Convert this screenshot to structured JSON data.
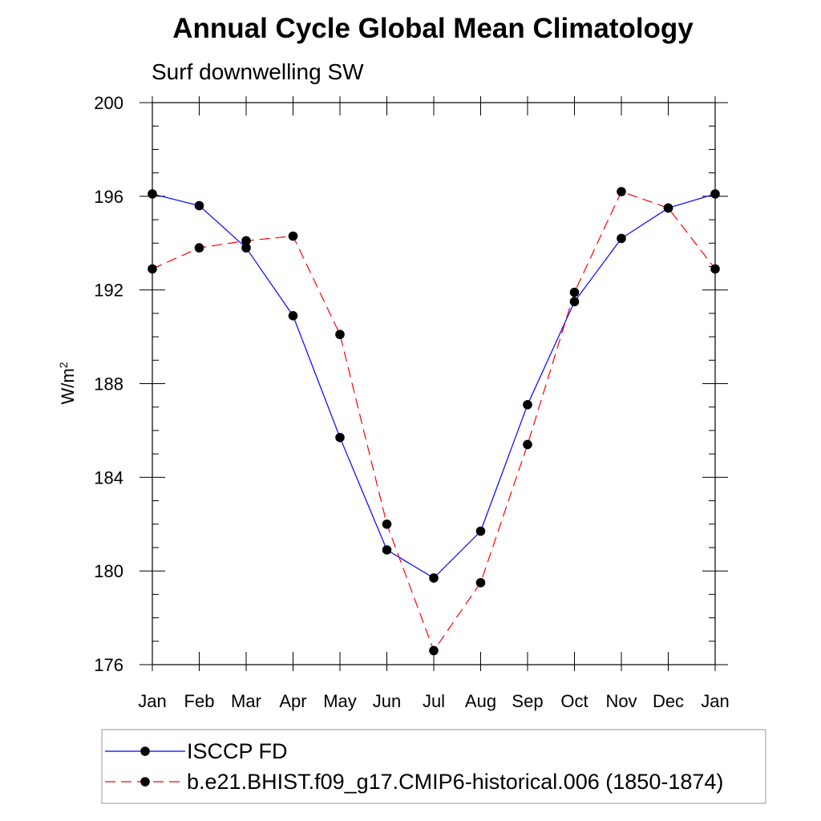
{
  "chart_data": {
    "type": "line",
    "title": "Annual Cycle Global Mean Climatology",
    "subtitle": "Surf downwelling SW",
    "ylabel": "W/m",
    "ylabel_superscript": "2",
    "xlabel": "",
    "categories": [
      "Jan",
      "Feb",
      "Mar",
      "Apr",
      "May",
      "Jun",
      "Jul",
      "Aug",
      "Sep",
      "Oct",
      "Nov",
      "Dec",
      "Jan"
    ],
    "ylim": [
      176,
      200
    ],
    "yticks": [
      "200",
      "196",
      "192",
      "188",
      "184",
      "180",
      "176"
    ],
    "grid": false,
    "legend_position": "bottom",
    "series": [
      {
        "name": "ISCCP FD",
        "color": "#0000ff",
        "dash": "solid",
        "values": [
          196.1,
          195.6,
          193.8,
          190.9,
          185.7,
          180.9,
          179.7,
          181.7,
          187.1,
          191.5,
          194.2,
          195.5,
          196.1
        ]
      },
      {
        "name": "b.e21.BHIST.f09_g17.CMIP6-historical.006 (1850-1874)",
        "color": "#ff0000",
        "dash": "dashed",
        "values": [
          192.9,
          193.8,
          194.1,
          194.3,
          190.1,
          182.0,
          176.6,
          179.5,
          185.4,
          191.9,
          196.2,
          195.5,
          192.9
        ]
      }
    ]
  }
}
